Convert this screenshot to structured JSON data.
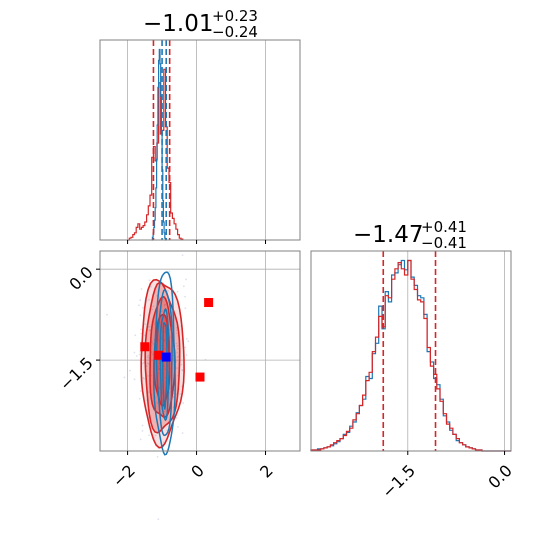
{
  "chart_data": {
    "type": "corner",
    "colors": {
      "series_a": "#d62728",
      "series_b": "#1f77b4",
      "marker_a": "#ff0000",
      "marker_b": "#0000ff",
      "grid": "#b0b0b0"
    },
    "panels": [
      {
        "id": "hist-param-1",
        "type": "histogram",
        "title": {
          "value": "−1.01",
          "plus": "+0.23",
          "minus": "−0.24"
        },
        "xlim": [
          -2.8,
          3.0
        ],
        "x_grid": [
          -2,
          0,
          2
        ],
        "quantile_lines": {
          "series_a": [
            -1.25,
            -0.78
          ],
          "series_b": [
            -1.0,
            -0.88
          ]
        },
        "series": [
          {
            "name": "",
            "color_key": "series_a",
            "bin_start": -2.0,
            "bin_width": 0.05,
            "counts": [
              0,
              2,
              3,
              6,
              8,
              14,
              18,
              12,
              14,
              16,
              20,
              28,
              38,
              50,
              92,
              104,
              88,
              108,
              175,
              118,
              122,
              190,
              126,
              80,
              64,
              30,
              24,
              18,
              12,
              6,
              2,
              1
            ]
          },
          {
            "name": "",
            "color_key": "series_b",
            "bin_start": -1.3,
            "bin_width": 0.02,
            "counts": [
              0,
              3,
              8,
              14,
              22,
              36,
              58,
              90,
              128,
              170,
              200,
              212,
              196,
              160,
              118,
              78,
              44,
              20,
              8,
              2,
              0
            ]
          }
        ]
      },
      {
        "id": "joint-param-1-2",
        "type": "contour",
        "xlim": [
          -2.8,
          3.0
        ],
        "ylim": [
          -3.0,
          0.3
        ],
        "x_ticks": [
          -2,
          0,
          2
        ],
        "x_tick_labels": [
          "−2",
          "0",
          "2"
        ],
        "y_ticks": [
          0.0,
          -1.5
        ],
        "y_tick_labels": [
          "0.0",
          "−1.5"
        ],
        "contours": {
          "center": [
            -1.0,
            -1.5
          ],
          "series_a_levels": [
            [
              0.62,
              1.35
            ],
            [
              0.5,
              1.2
            ],
            [
              0.36,
              0.98
            ],
            [
              0.22,
              0.75
            ]
          ],
          "series_b_levels": [
            [
              0.3,
              1.5
            ],
            [
              0.22,
              1.2
            ],
            [
              0.13,
              0.9
            ],
            [
              0.06,
              0.7
            ]
          ]
        },
        "markers_a": [
          [
            -1.5,
            -1.28
          ],
          [
            -1.1,
            -1.42
          ],
          [
            0.35,
            -0.55
          ],
          [
            0.1,
            -1.78
          ]
        ],
        "markers_b": [
          [
            -0.88,
            -1.45
          ]
        ]
      },
      {
        "id": "hist-param-2",
        "type": "histogram",
        "title": {
          "value": "−1.47",
          "plus": "+0.41",
          "minus": "−0.41"
        },
        "xlim": [
          -3.0,
          0.1
        ],
        "x_ticks": [
          -1.5,
          0.0
        ],
        "x_tick_labels": [
          "−1.5",
          "0.0"
        ],
        "quantile_lines": {
          "series_a": [
            -1.88,
            -1.07
          ]
        },
        "series": [
          {
            "name": "",
            "color_key": "series_b",
            "bin_start": -3.0,
            "bin_width": 0.05,
            "counts": [
              1,
              1,
              2,
              2,
              3,
              4,
              5,
              7,
              9,
              12,
              16,
              18,
              24,
              28,
              37,
              44,
              50,
              72,
              70,
              94,
              104,
              140,
              118,
              154,
              144,
              170,
              172,
              180,
              184,
              175,
              184,
              168,
              160,
              150,
              148,
              132,
              96,
              86,
              70,
              64,
              50,
              34,
              28,
              20,
              16,
              10,
              8,
              6,
              4,
              3,
              2,
              1,
              1,
              0,
              0,
              0,
              0,
              0,
              0,
              0,
              0,
              0
            ]
          },
          {
            "name": "",
            "color_key": "series_a",
            "bin_start": -3.0,
            "bin_width": 0.05,
            "counts": [
              1,
              1,
              1,
              2,
              3,
              4,
              6,
              8,
              10,
              12,
              15,
              19,
              22,
              30,
              36,
              44,
              54,
              68,
              76,
              96,
              110,
              130,
              120,
              150,
              148,
              166,
              176,
              182,
              176,
              170,
              184,
              166,
              156,
              146,
              144,
              128,
              100,
              82,
              74,
              60,
              48,
              36,
              26,
              22,
              16,
              12,
              8,
              6,
              4,
              3,
              2,
              1,
              1,
              0,
              0,
              0,
              0,
              0,
              0,
              0,
              0,
              0
            ]
          }
        ]
      }
    ]
  }
}
